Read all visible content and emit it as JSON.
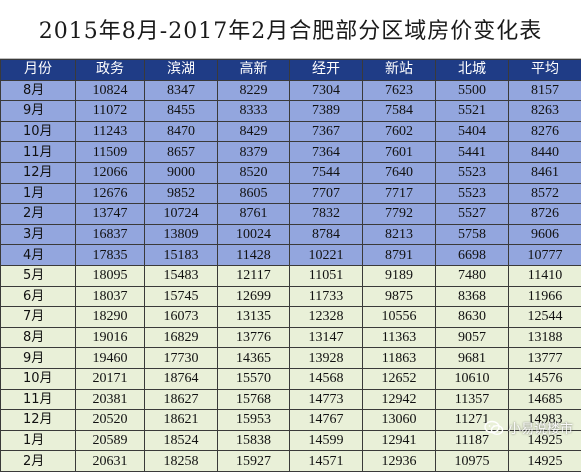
{
  "title": "2015年8月-2017年2月合肥部分区域房价变化表",
  "columns": [
    "月份",
    "政务",
    "滨湖",
    "高新",
    "经开",
    "新站",
    "北城",
    "平均"
  ],
  "rows": [
    {
      "month": "8月",
      "values": [
        "10824",
        "8347",
        "8229",
        "7304",
        "7623",
        "5500",
        "8157"
      ],
      "band": "blue"
    },
    {
      "month": "9月",
      "values": [
        "11072",
        "8455",
        "8333",
        "7389",
        "7584",
        "5521",
        "8263"
      ],
      "band": "blue"
    },
    {
      "month": "10月",
      "values": [
        "11243",
        "8470",
        "8429",
        "7367",
        "7602",
        "5404",
        "8276"
      ],
      "band": "blue"
    },
    {
      "month": "11月",
      "values": [
        "11509",
        "8657",
        "8379",
        "7364",
        "7601",
        "5441",
        "8440"
      ],
      "band": "blue"
    },
    {
      "month": "12月",
      "values": [
        "12066",
        "9000",
        "8520",
        "7544",
        "7640",
        "5523",
        "8461"
      ],
      "band": "blue"
    },
    {
      "month": "1月",
      "values": [
        "12676",
        "9852",
        "8605",
        "7707",
        "7717",
        "5523",
        "8572"
      ],
      "band": "blue"
    },
    {
      "month": "2月",
      "values": [
        "13747",
        "10724",
        "8761",
        "7832",
        "7792",
        "5527",
        "8726"
      ],
      "band": "blue"
    },
    {
      "month": "3月",
      "values": [
        "16837",
        "13809",
        "10024",
        "8784",
        "8213",
        "5758",
        "9606"
      ],
      "band": "blue"
    },
    {
      "month": "4月",
      "values": [
        "17835",
        "15183",
        "11428",
        "10221",
        "8791",
        "6698",
        "10777"
      ],
      "band": "blue"
    },
    {
      "month": "5月",
      "values": [
        "18095",
        "15483",
        "12117",
        "11051",
        "9189",
        "7480",
        "11410"
      ],
      "band": "green"
    },
    {
      "month": "6月",
      "values": [
        "18037",
        "15745",
        "12699",
        "11733",
        "9875",
        "8368",
        "11966"
      ],
      "band": "green"
    },
    {
      "month": "7月",
      "values": [
        "18290",
        "16073",
        "13135",
        "12328",
        "10556",
        "8630",
        "12544"
      ],
      "band": "green"
    },
    {
      "month": "8月",
      "values": [
        "19016",
        "16829",
        "13776",
        "13147",
        "11363",
        "9057",
        "13188"
      ],
      "band": "green"
    },
    {
      "month": "9月",
      "values": [
        "19460",
        "17730",
        "14365",
        "13928",
        "11863",
        "9681",
        "13777"
      ],
      "band": "green"
    },
    {
      "month": "10月",
      "values": [
        "20171",
        "18764",
        "15570",
        "14568",
        "12652",
        "10610",
        "14576"
      ],
      "band": "green"
    },
    {
      "month": "11月",
      "values": [
        "20381",
        "18627",
        "15768",
        "14773",
        "12942",
        "11357",
        "14685"
      ],
      "band": "green"
    },
    {
      "month": "12月",
      "values": [
        "20520",
        "18621",
        "15953",
        "14767",
        "13060",
        "11271",
        "14983"
      ],
      "band": "green"
    },
    {
      "month": "1月",
      "values": [
        "20589",
        "18524",
        "15838",
        "14599",
        "12941",
        "11187",
        "14925"
      ],
      "band": "green"
    },
    {
      "month": "2月",
      "values": [
        "20631",
        "18258",
        "15927",
        "14571",
        "12936",
        "10975",
        "14925"
      ],
      "band": "green"
    }
  ],
  "watermark": {
    "text": "小易说楼市",
    "icon": "wechat-icon"
  },
  "colors": {
    "header": "#1f3c86",
    "band_blue": "#93a6de",
    "band_green": "#e9f0d8"
  }
}
